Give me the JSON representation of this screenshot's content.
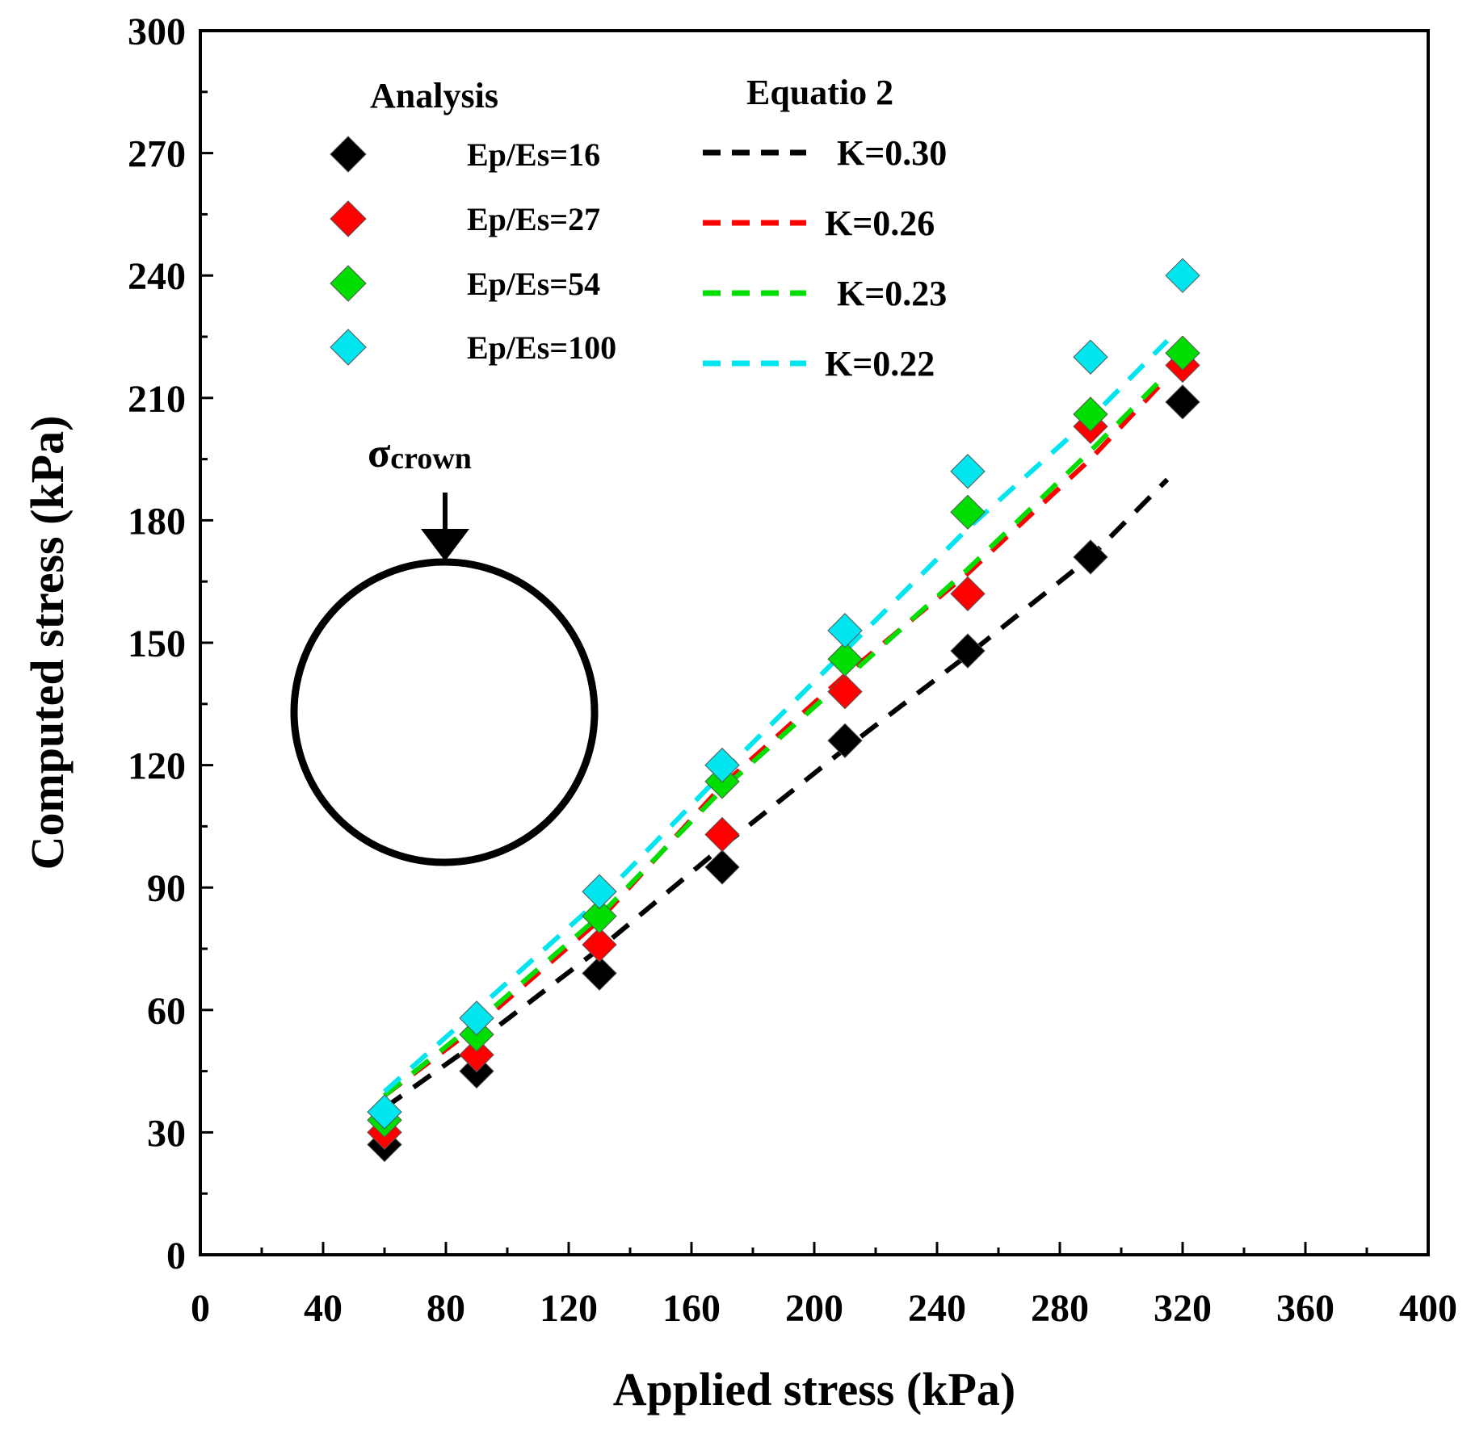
{
  "chart_data": {
    "type": "scatter",
    "xlabel": "Applied stress (kPa)",
    "ylabel": "Computed stress (kPa)",
    "xlim": [
      0,
      400
    ],
    "ylim": [
      0,
      300
    ],
    "xticks": [
      0,
      40,
      80,
      120,
      160,
      200,
      240,
      280,
      320,
      360,
      400
    ],
    "yticks": [
      0,
      30,
      60,
      90,
      120,
      150,
      180,
      210,
      240,
      270,
      300
    ],
    "grid": false,
    "legend_position": "top-left",
    "legend_titles": {
      "points": "Analysis",
      "lines": "Equatio 2"
    },
    "point_series": [
      {
        "name": "Ep/Es=16",
        "color": "#000000",
        "x": [
          60,
          90,
          130,
          170,
          210,
          250,
          290,
          320
        ],
        "y": [
          27,
          45,
          69,
          95,
          126,
          148,
          171,
          209
        ]
      },
      {
        "name": "Ep/Es=27",
        "color": "#ff0000",
        "x": [
          60,
          90,
          130,
          170,
          210,
          250,
          290,
          320
        ],
        "y": [
          30,
          49,
          76,
          103,
          138,
          162,
          203,
          218
        ]
      },
      {
        "name": "Ep/Es=54",
        "color": "#00dd00",
        "x": [
          60,
          90,
          130,
          170,
          210,
          250,
          290,
          320
        ],
        "y": [
          33,
          54,
          83,
          116,
          146,
          182,
          206,
          221
        ]
      },
      {
        "name": "Ep/Es=100",
        "color": "#00e5ee",
        "x": [
          60,
          90,
          130,
          170,
          210,
          250,
          290,
          320
        ],
        "y": [
          35,
          58,
          89,
          120,
          153,
          192,
          220,
          240
        ]
      }
    ],
    "line_series": [
      {
        "name": "K=0.30",
        "color": "#000000",
        "style": "dashed",
        "x": [
          60,
          90,
          130,
          170,
          210,
          250,
          290,
          315
        ],
        "y": [
          36,
          52,
          75,
          100,
          124,
          147,
          171,
          190
        ]
      },
      {
        "name": "K=0.26",
        "color": "#ff0000",
        "style": "dashed",
        "x": [
          60,
          90,
          130,
          170,
          210,
          250,
          290,
          315
        ],
        "y": [
          39,
          56,
          82,
          115,
          142,
          167,
          195,
          215
        ]
      },
      {
        "name": "K=0.23",
        "color": "#00dd00",
        "style": "dashed",
        "x": [
          60,
          90,
          130,
          170,
          210,
          250,
          290,
          315
        ],
        "y": [
          39,
          57,
          83,
          114,
          141,
          168,
          197,
          216
        ]
      },
      {
        "name": "K=0.22",
        "color": "#00e5ee",
        "style": "dashed",
        "x": [
          60,
          90,
          130,
          170,
          210,
          250,
          290,
          315
        ],
        "y": [
          40,
          60,
          87,
          118,
          148,
          178,
          205,
          224
        ]
      }
    ],
    "annotation": {
      "symbol": "σ",
      "subscript": "crown",
      "shape": "circle with downward arrow at crown"
    }
  }
}
